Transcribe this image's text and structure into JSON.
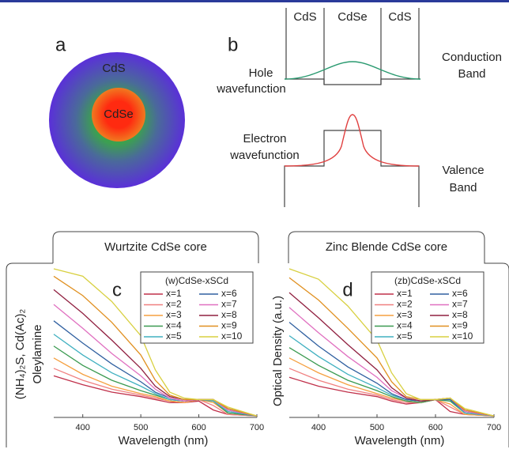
{
  "panel_a": {
    "letter": "a",
    "shell": "CdS",
    "core": "CdSe"
  },
  "panel_b": {
    "letter": "b",
    "regions": [
      "CdS",
      "CdSe",
      "CdS"
    ],
    "hole_label": [
      "Hole",
      "wavefunction"
    ],
    "conduction_label": [
      "Conduction",
      "Band"
    ],
    "electron_label": [
      "Electron",
      "wavefunction"
    ],
    "valence_label": [
      "Valence",
      "Band"
    ]
  },
  "frames": {
    "left_title": "Wurtzite CdSe core",
    "right_title": "Zinc Blende CdSe core",
    "side_label": [
      "(NH₄)₂S, Cd(Ac)₂",
      "Oleylamine"
    ]
  },
  "chart_data": [
    {
      "type": "line",
      "panel": "c",
      "legend_title": "(w)CdSe-xSCd",
      "xlabel": "Wavelength (nm)",
      "x": [
        350,
        400,
        450,
        500,
        525,
        550,
        575,
        600,
        625,
        650,
        700
      ],
      "xlim": [
        350,
        700
      ],
      "xticks": [
        400,
        500,
        600,
        700
      ],
      "ylim": [
        0,
        1
      ],
      "series": [
        {
          "name": "x=1",
          "color": "#c0304a",
          "values": [
            0.28,
            0.22,
            0.17,
            0.14,
            0.12,
            0.1,
            0.1,
            0.11,
            0.05,
            0.02,
            0.01
          ]
        },
        {
          "name": "x=2",
          "color": "#f08080",
          "values": [
            0.33,
            0.25,
            0.19,
            0.15,
            0.13,
            0.11,
            0.1,
            0.12,
            0.08,
            0.02,
            0.01
          ]
        },
        {
          "name": "x=3",
          "color": "#f5a040",
          "values": [
            0.4,
            0.29,
            0.21,
            0.16,
            0.14,
            0.11,
            0.1,
            0.12,
            0.1,
            0.03,
            0.01
          ]
        },
        {
          "name": "x=4",
          "color": "#3a9a50",
          "values": [
            0.48,
            0.35,
            0.25,
            0.18,
            0.15,
            0.12,
            0.11,
            0.12,
            0.11,
            0.03,
            0.01
          ]
        },
        {
          "name": "x=5",
          "color": "#40b0c0",
          "values": [
            0.56,
            0.42,
            0.3,
            0.21,
            0.16,
            0.12,
            0.11,
            0.12,
            0.11,
            0.04,
            0.01
          ]
        },
        {
          "name": "x=6",
          "color": "#3060a0",
          "values": [
            0.65,
            0.5,
            0.36,
            0.24,
            0.17,
            0.13,
            0.11,
            0.12,
            0.12,
            0.05,
            0.01
          ]
        },
        {
          "name": "x=7",
          "color": "#e070c0",
          "values": [
            0.76,
            0.6,
            0.43,
            0.28,
            0.19,
            0.13,
            0.11,
            0.12,
            0.12,
            0.05,
            0.01
          ]
        },
        {
          "name": "x=8",
          "color": "#902040",
          "values": [
            0.86,
            0.7,
            0.52,
            0.33,
            0.21,
            0.14,
            0.12,
            0.12,
            0.12,
            0.06,
            0.01
          ]
        },
        {
          "name": "x=9",
          "color": "#e09020",
          "values": [
            0.95,
            0.82,
            0.64,
            0.42,
            0.25,
            0.15,
            0.12,
            0.12,
            0.12,
            0.06,
            0.01
          ]
        },
        {
          "name": "x=10",
          "color": "#d8d040",
          "values": [
            1.0,
            0.95,
            0.78,
            0.55,
            0.32,
            0.17,
            0.13,
            0.12,
            0.12,
            0.07,
            0.01
          ]
        }
      ]
    },
    {
      "type": "line",
      "panel": "d",
      "legend_title": "(zb)CdSe-xSCd",
      "xlabel": "Wavelength (nm)",
      "ylabel": "Optical Density (a.u.)",
      "x": [
        350,
        400,
        450,
        500,
        525,
        550,
        575,
        600,
        625,
        650,
        700
      ],
      "xlim": [
        350,
        700
      ],
      "xticks": [
        400,
        500,
        600,
        700
      ],
      "ylim": [
        0,
        1
      ],
      "series": [
        {
          "name": "x=1",
          "color": "#c0304a",
          "values": [
            0.27,
            0.21,
            0.17,
            0.14,
            0.11,
            0.09,
            0.1,
            0.12,
            0.04,
            0.02,
            0.01
          ]
        },
        {
          "name": "x=2",
          "color": "#f08080",
          "values": [
            0.33,
            0.25,
            0.19,
            0.15,
            0.12,
            0.1,
            0.1,
            0.12,
            0.07,
            0.02,
            0.01
          ]
        },
        {
          "name": "x=3",
          "color": "#f5a040",
          "values": [
            0.4,
            0.3,
            0.22,
            0.16,
            0.13,
            0.11,
            0.1,
            0.12,
            0.09,
            0.02,
            0.01
          ]
        },
        {
          "name": "x=4",
          "color": "#3a9a50",
          "values": [
            0.47,
            0.35,
            0.25,
            0.18,
            0.14,
            0.11,
            0.1,
            0.12,
            0.11,
            0.03,
            0.01
          ]
        },
        {
          "name": "x=5",
          "color": "#40b0c0",
          "values": [
            0.55,
            0.41,
            0.29,
            0.2,
            0.15,
            0.12,
            0.11,
            0.12,
            0.12,
            0.03,
            0.01
          ]
        },
        {
          "name": "x=6",
          "color": "#3060a0",
          "values": [
            0.64,
            0.48,
            0.34,
            0.23,
            0.16,
            0.12,
            0.11,
            0.12,
            0.12,
            0.04,
            0.01
          ]
        },
        {
          "name": "x=7",
          "color": "#e070c0",
          "values": [
            0.74,
            0.57,
            0.41,
            0.27,
            0.18,
            0.13,
            0.11,
            0.12,
            0.13,
            0.04,
            0.01
          ]
        },
        {
          "name": "x=8",
          "color": "#902040",
          "values": [
            0.84,
            0.67,
            0.49,
            0.32,
            0.2,
            0.13,
            0.11,
            0.12,
            0.13,
            0.05,
            0.01
          ]
        },
        {
          "name": "x=9",
          "color": "#e09020",
          "values": [
            0.94,
            0.79,
            0.6,
            0.4,
            0.24,
            0.14,
            0.12,
            0.12,
            0.13,
            0.05,
            0.01
          ]
        },
        {
          "name": "x=10",
          "color": "#d8d040",
          "values": [
            1.0,
            0.93,
            0.75,
            0.52,
            0.3,
            0.16,
            0.12,
            0.12,
            0.13,
            0.06,
            0.01
          ]
        }
      ]
    }
  ]
}
